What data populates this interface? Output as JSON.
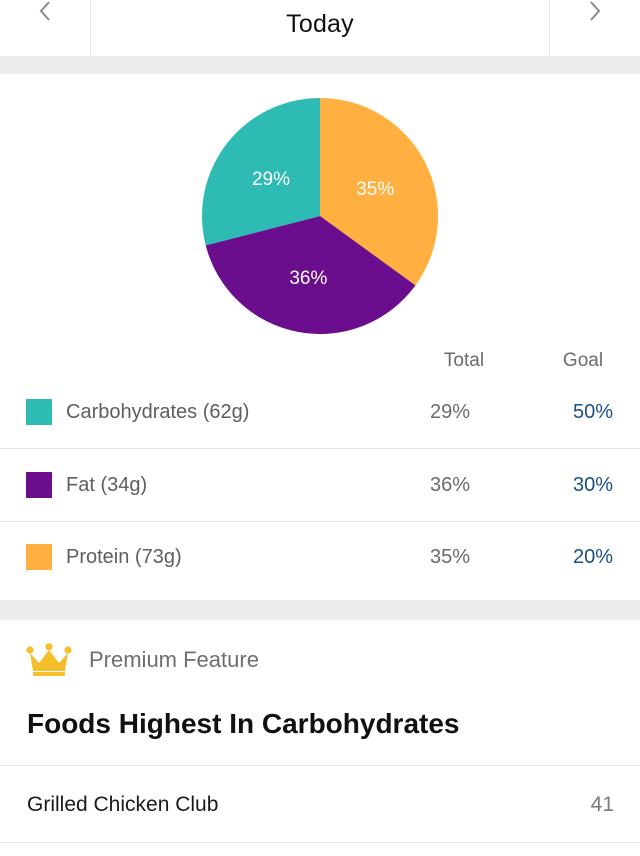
{
  "header": {
    "title": "Today",
    "prev_icon": "chevron-left-icon",
    "next_icon": "chevron-right-icon"
  },
  "macros": {
    "column_total": "Total",
    "column_goal": "Goal",
    "rows": [
      {
        "name": "Carbohydrates (62g)",
        "total": "29%",
        "goal": "50%",
        "color": "#2ebbb3"
      },
      {
        "name": "Fat (34g)",
        "total": "36%",
        "goal": "30%",
        "color": "#6a0e8e"
      },
      {
        "name": "Protein (73g)",
        "total": "35%",
        "goal": "20%",
        "color": "#ffb040"
      }
    ]
  },
  "chart_data": {
    "type": "pie",
    "categories": [
      "Protein",
      "Fat",
      "Carbohydrates"
    ],
    "values": [
      35,
      36,
      29
    ],
    "labels": [
      "35%",
      "36%",
      "29%"
    ],
    "colors": [
      "#ffb040",
      "#6a0e8e",
      "#2ebbb3"
    ]
  },
  "premium": {
    "icon": "crown-icon",
    "label": "Premium Feature",
    "section_title": "Foods Highest In Carbohydrates",
    "foods": [
      {
        "name": "Grilled Chicken Club",
        "value": "41"
      }
    ]
  }
}
